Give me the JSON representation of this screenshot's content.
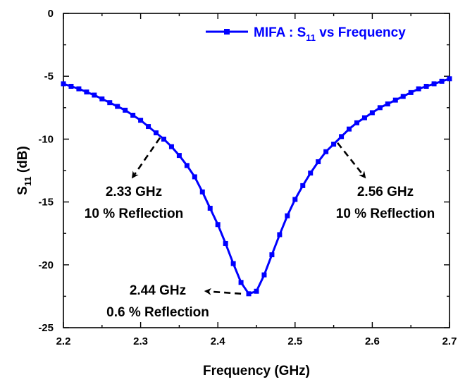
{
  "chart_data": {
    "type": "line",
    "title": "",
    "xlabel": "Frequency (GHz)",
    "ylabel": {
      "main": "S",
      "sub": "11",
      "rest": " (dB)"
    },
    "xlim": [
      2.2,
      2.7
    ],
    "ylim": [
      -25,
      0
    ],
    "x_ticks": [
      "2.2",
      "2.3",
      "2.4",
      "2.5",
      "2.6",
      "2.7"
    ],
    "y_ticks": [
      "0",
      "-5",
      "-10",
      "-15",
      "-20",
      "-25"
    ],
    "grid": false,
    "legend_position": "top-right",
    "series": [
      {
        "name": {
          "main": "MIFA : S",
          "sub": "11",
          "rest": " vs Frequency"
        },
        "color": "#0000ff",
        "marker": "square",
        "points": [
          [
            2.2,
            -5.6
          ],
          [
            2.21,
            -5.8
          ],
          [
            2.22,
            -6.0
          ],
          [
            2.23,
            -6.25
          ],
          [
            2.24,
            -6.5
          ],
          [
            2.25,
            -6.8
          ],
          [
            2.26,
            -7.1
          ],
          [
            2.27,
            -7.4
          ],
          [
            2.28,
            -7.7
          ],
          [
            2.29,
            -8.1
          ],
          [
            2.3,
            -8.5
          ],
          [
            2.31,
            -9.0
          ],
          [
            2.32,
            -9.5
          ],
          [
            2.33,
            -10.0
          ],
          [
            2.34,
            -10.6
          ],
          [
            2.35,
            -11.3
          ],
          [
            2.36,
            -12.1
          ],
          [
            2.37,
            -13.0
          ],
          [
            2.38,
            -14.2
          ],
          [
            2.39,
            -15.5
          ],
          [
            2.4,
            -16.8
          ],
          [
            2.41,
            -18.3
          ],
          [
            2.42,
            -19.9
          ],
          [
            2.43,
            -21.4
          ],
          [
            2.44,
            -22.3
          ],
          [
            2.45,
            -22.1
          ],
          [
            2.46,
            -20.8
          ],
          [
            2.47,
            -19.2
          ],
          [
            2.48,
            -17.6
          ],
          [
            2.49,
            -16.1
          ],
          [
            2.5,
            -14.8
          ],
          [
            2.51,
            -13.7
          ],
          [
            2.52,
            -12.7
          ],
          [
            2.53,
            -11.8
          ],
          [
            2.54,
            -11.0
          ],
          [
            2.55,
            -10.4
          ],
          [
            2.56,
            -9.8
          ],
          [
            2.57,
            -9.2
          ],
          [
            2.58,
            -8.7
          ],
          [
            2.59,
            -8.3
          ],
          [
            2.6,
            -7.9
          ],
          [
            2.61,
            -7.5
          ],
          [
            2.62,
            -7.2
          ],
          [
            2.63,
            -6.9
          ],
          [
            2.64,
            -6.6
          ],
          [
            2.65,
            -6.3
          ],
          [
            2.66,
            -6.0
          ],
          [
            2.67,
            -5.8
          ],
          [
            2.68,
            -5.6
          ],
          [
            2.69,
            -5.4
          ],
          [
            2.7,
            -5.2
          ]
        ]
      }
    ],
    "annotations": [
      {
        "id": "low",
        "lines": [
          "2.33 GHz",
          "10 % Reflection"
        ],
        "from": [
          2.325,
          -9.9
        ],
        "to": [
          2.29,
          -13.0
        ]
      },
      {
        "id": "min",
        "lines": [
          "2.44 GHz",
          "0.6 % Reflection"
        ],
        "from": [
          2.43,
          -22.3
        ],
        "to": [
          2.385,
          -22.1
        ]
      },
      {
        "id": "high",
        "lines": [
          "2.56 GHz",
          "10 % Reflection"
        ],
        "from": [
          2.555,
          -10.3
        ],
        "to": [
          2.59,
          -13.0
        ]
      }
    ]
  }
}
